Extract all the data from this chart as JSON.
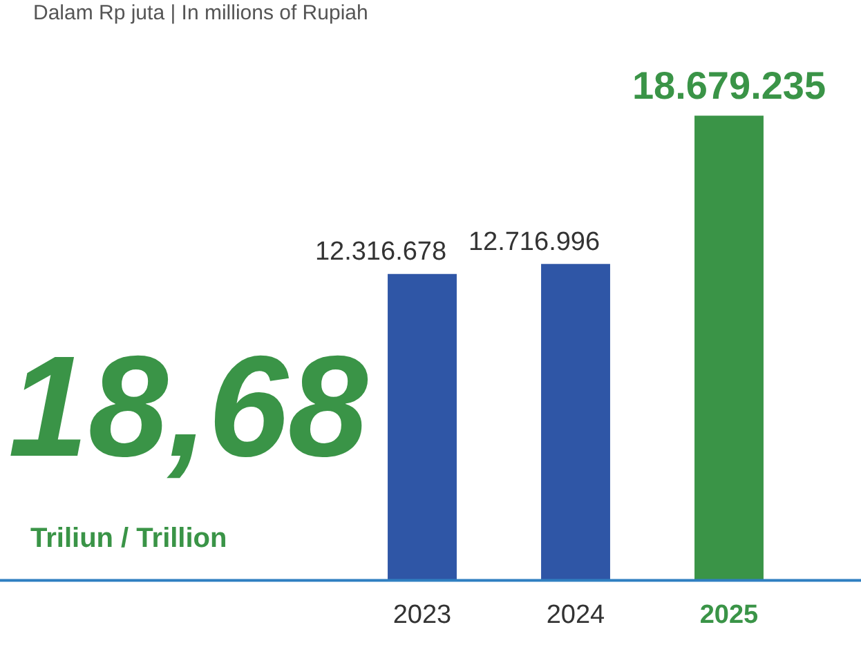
{
  "chart_data": {
    "type": "bar",
    "subtitle": "Dalam Rp juta | In millions of Rupiah",
    "categories": [
      "2023",
      "2024",
      "2025"
    ],
    "values": [
      12316678,
      12716996,
      18679235
    ],
    "colors": [
      "#2f56a6",
      "#2f56a6",
      "#3a9447"
    ],
    "value_labels": [
      "12.316.678",
      "12.716.996",
      "18.679.235"
    ],
    "annotations": [
      "18,68",
      "Triliun / Trillion"
    ],
    "grid": false,
    "legend": false
  }
}
